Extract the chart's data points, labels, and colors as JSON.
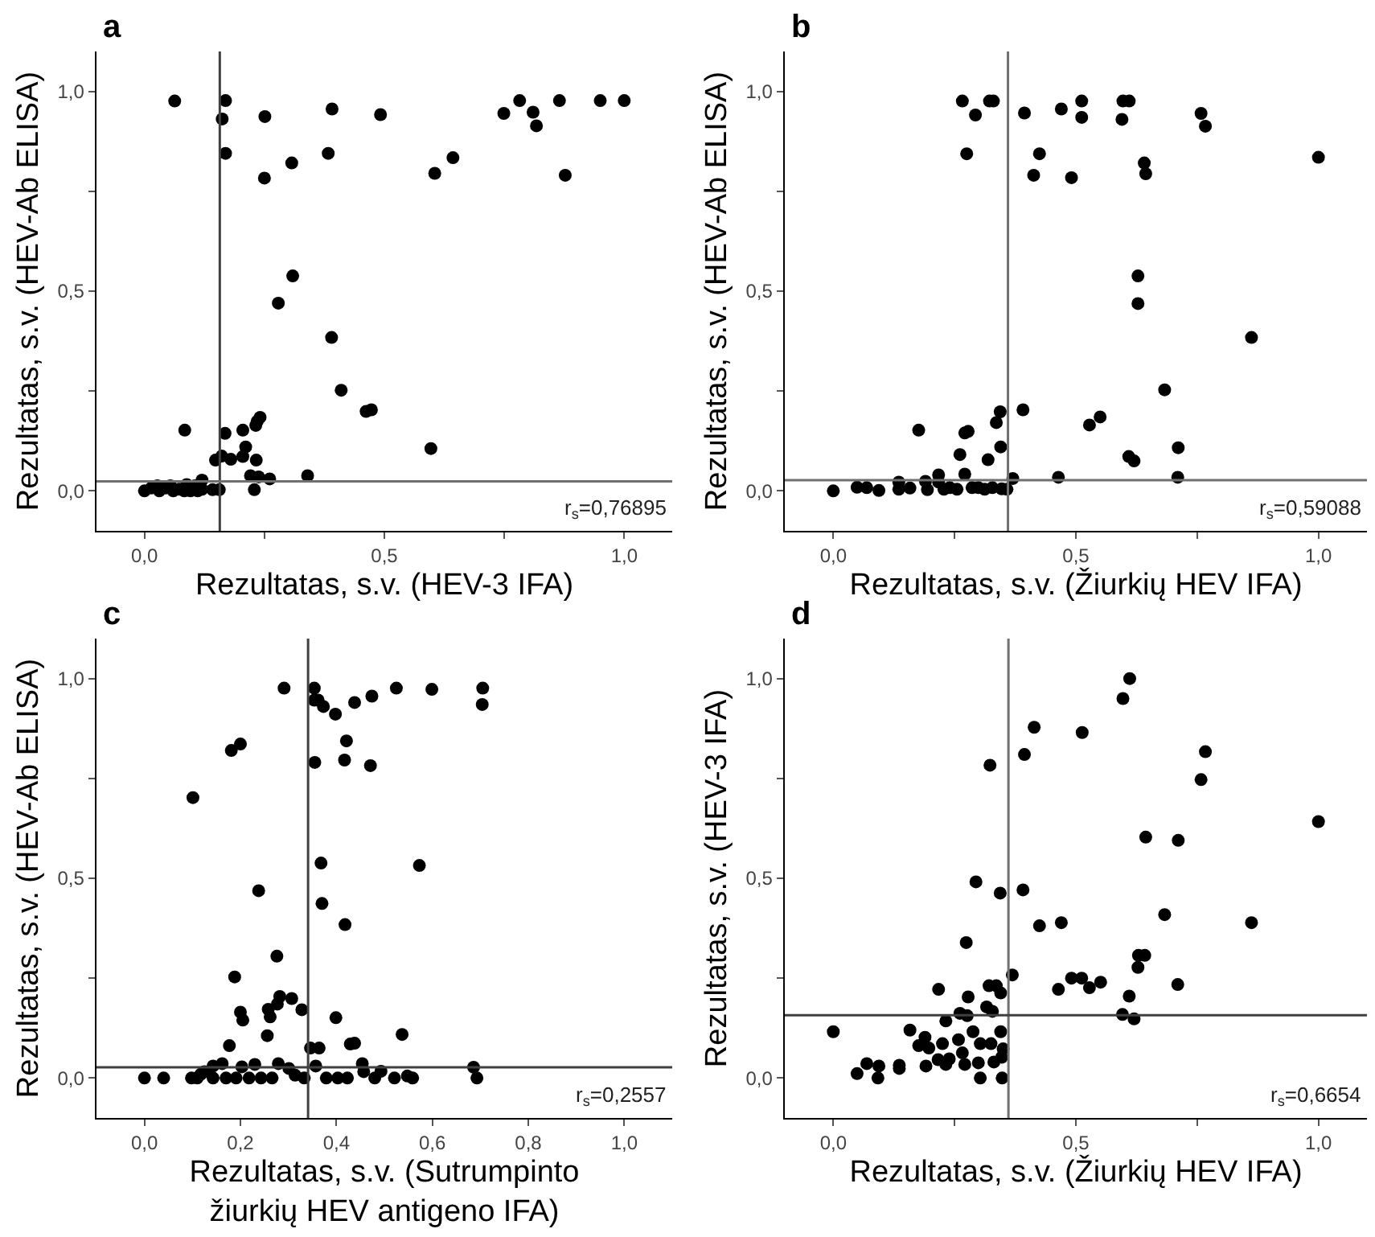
{
  "chart_data": [
    {
      "type": "scatter",
      "title": "a",
      "xlabel": "Rezultatas, s.v. (HEV-3 IFA)",
      "ylabel": "Rezultatas, s.v. (HEV-Ab ELISA)",
      "marker": "circle",
      "xlim": [
        -0.1,
        1.1
      ],
      "ylim": [
        -0.1,
        1.1
      ],
      "xticks": [
        {
          "value": 0,
          "label": "0,0"
        },
        {
          "value": 0.25,
          "label": null
        },
        {
          "value": 0.5,
          "label": "0,5"
        },
        {
          "value": 0.75,
          "label": null
        },
        {
          "value": 1,
          "label": "1,0"
        }
      ],
      "yticks": [
        {
          "value": 0,
          "label": "0,0"
        },
        {
          "value": 0.25,
          "label": null
        },
        {
          "value": 0.5,
          "label": "0,5"
        },
        {
          "value": 0.75,
          "label": null
        },
        {
          "value": 1,
          "label": "1,0"
        }
      ],
      "ref_lines": [
        {
          "axis": "x",
          "value": 0.157,
          "color": "#404040"
        },
        {
          "axis": "y",
          "value": 0.024,
          "color": "#707070"
        }
      ],
      "annotations": [
        "r$_{s}$=0,76895"
      ],
      "series": [
        {
          "color": "#000000",
          "x": [
            0.063,
            0.169,
            0.162,
            0.169,
            0.251,
            0.25,
            0.307,
            0.391,
            0.383,
            0.492,
            0.605,
            0.643,
            0.749,
            0.782,
            0.81,
            0.817,
            0.865,
            0.877,
            0.95,
            1.0,
            0.309,
            0.279,
            0.39,
            0.41,
            0.462,
            0.473,
            0.597,
            0.084,
            0.168,
            0.205,
            0.232,
            0.241,
            0.235,
            0.211,
            0.205,
            0.233,
            0.148,
            0.161,
            0.18,
            0.221,
            0.238,
            0.261,
            0.34,
            0.229,
            0,
            0.014,
            0.027,
            0.031,
            0.044,
            0.054,
            0.06,
            0.072,
            0.083,
            0.088,
            0.096,
            0.105,
            0.111,
            0.12,
            0.12,
            0.142,
            0.156
          ],
          "values": [
            0.976,
            0.977,
            0.931,
            0.845,
            0.937,
            0.783,
            0.821,
            0.956,
            0.845,
            0.942,
            0.795,
            0.834,
            0.945,
            0.977,
            0.948,
            0.914,
            0.977,
            0.79,
            0.977,
            0.977,
            0.538,
            0.47,
            0.384,
            0.252,
            0.199,
            0.203,
            0.106,
            0.152,
            0.144,
            0.152,
            0.164,
            0.184,
            0.174,
            0.11,
            0.086,
            0.077,
            0.077,
            0.087,
            0.079,
            0.038,
            0.035,
            0.03,
            0.038,
            0.003,
            0,
            0.007,
            0.013,
            0,
            0.007,
            0.013,
            0,
            0.004,
            0,
            0.016,
            0,
            0.013,
            0,
            0.027,
            0.004,
            0.003,
            0.003
          ]
        }
      ]
    },
    {
      "type": "scatter",
      "title": "b",
      "xlabel": "Rezultatas, s.v. (Žiurkių HEV IFA)",
      "ylabel": "Rezultatas, s.v. (HEV-Ab ELISA)",
      "marker": "circle",
      "xlim": [
        -0.1,
        1.1
      ],
      "ylim": [
        -0.1,
        1.1
      ],
      "xticks": [
        {
          "value": 0,
          "label": "0,0"
        },
        {
          "value": 0.25,
          "label": null
        },
        {
          "value": 0.5,
          "label": "0,5"
        },
        {
          "value": 0.75,
          "label": null
        },
        {
          "value": 1,
          "label": "1,0"
        }
      ],
      "yticks": [
        {
          "value": 0,
          "label": "0,0"
        },
        {
          "value": 0.25,
          "label": null
        },
        {
          "value": 0.5,
          "label": "0,5"
        },
        {
          "value": 0.75,
          "label": null
        },
        {
          "value": 1,
          "label": "1,0"
        }
      ],
      "ref_lines": [
        {
          "axis": "x",
          "value": 0.36,
          "color": "#707070"
        },
        {
          "axis": "y",
          "value": 0.027,
          "color": "#707070"
        }
      ],
      "annotations": [
        "r$_{s}$=0,59088"
      ],
      "series": [
        {
          "color": "#000000",
          "x": [
            0,
            0.049,
            0.069,
            0.094,
            0.135,
            0.135,
            0.158,
            0.176,
            0.19,
            0.194,
            0.217,
            0.217,
            0.228,
            0.24,
            0.255,
            0.261,
            0.266,
            0.271,
            0.271,
            0.278,
            0.275,
            0.293,
            0.286,
            0.299,
            0.312,
            0.319,
            0.322,
            0.33,
            0.336,
            0.344,
            0.345,
            0.328,
            0.347,
            0.358,
            0.37,
            0.391,
            0.394,
            0.413,
            0.425,
            0.464,
            0.47,
            0.491,
            0.512,
            0.512,
            0.528,
            0.55,
            0.595,
            0.597,
            0.61,
            0.609,
            0.62,
            0.628,
            0.628,
            0.641,
            0.644,
            0.683,
            0.711,
            0.71,
            0.758,
            0.767,
            0.862,
            1.0
          ],
          "values": [
            0,
            0.009,
            0.008,
            0.001,
            0.022,
            0.004,
            0.007,
            0.152,
            0.024,
            0.003,
            0.04,
            0.022,
            0.004,
            0.008,
            0.004,
            0.091,
            0.976,
            0.042,
            0.145,
            0.149,
            0.844,
            0.941,
            0.008,
            0.008,
            0.004,
            0.078,
            0.976,
            0.976,
            0.171,
            0.198,
            0.11,
            0.008,
            0.005,
            0.004,
            0.031,
            0.203,
            0.946,
            0.79,
            0.844,
            0.034,
            0.956,
            0.784,
            0.976,
            0.935,
            0.165,
            0.185,
            0.93,
            0.976,
            0.976,
            0.086,
            0.075,
            0.538,
            0.469,
            0.821,
            0.794,
            0.253,
            0.108,
            0.034,
            0.945,
            0.913,
            0.384,
            0.835
          ]
        }
      ]
    },
    {
      "type": "scatter",
      "title": "c",
      "xlabel": "Rezultatas, s.v. (Sutrumpinto\nžiurkių HEV antigeno IFA)",
      "ylabel": "Rezultatas, s.v. (HEV-Ab ELISA)",
      "marker": "circle",
      "xlim": [
        -0.1,
        1.1
      ],
      "ylim": [
        -0.1,
        1.1
      ],
      "xticks": [
        {
          "value": 0,
          "label": "0,0"
        },
        {
          "value": 0.2,
          "label": "0,2"
        },
        {
          "value": 0.4,
          "label": "0,4"
        },
        {
          "value": 0.6,
          "label": "0,6"
        },
        {
          "value": 0.8,
          "label": "0,8"
        },
        {
          "value": 1,
          "label": "1,0"
        }
      ],
      "yticks": [
        {
          "value": 0,
          "label": "0,0"
        },
        {
          "value": 0.25,
          "label": null
        },
        {
          "value": 0.5,
          "label": "0,5"
        },
        {
          "value": 0.75,
          "label": null
        },
        {
          "value": 1,
          "label": "1,0"
        }
      ],
      "ref_lines": [
        {
          "axis": "x",
          "value": 0.341,
          "color": "#404040"
        },
        {
          "axis": "y",
          "value": 0.027,
          "color": "#404040"
        }
      ],
      "annotations": [
        "r$_{s}$=0,2557"
      ],
      "series": [
        {
          "color": "#000000",
          "x": [
            0,
            0.04,
            0.098,
            0.101,
            0.11,
            0.117,
            0.125,
            0.143,
            0.143,
            0.162,
            0.17,
            0.177,
            0.181,
            0.188,
            0.191,
            0.2,
            0.2,
            0.205,
            0.203,
            0.218,
            0.23,
            0.238,
            0.243,
            0.256,
            0.258,
            0.262,
            0.266,
            0.276,
            0.277,
            0.279,
            0.282,
            0.291,
            0.301,
            0.307,
            0.314,
            0.328,
            0.333,
            0.346,
            0.354,
            0.354,
            0.355,
            0.357,
            0.362,
            0.364,
            0.368,
            0.37,
            0.373,
            0.379,
            0.398,
            0.399,
            0.403,
            0.417,
            0.418,
            0.421,
            0.423,
            0.429,
            0.438,
            0.438,
            0.454,
            0.457,
            0.471,
            0.474,
            0.48,
            0.493,
            0.521,
            0.525,
            0.537,
            0.548,
            0.559,
            0.573,
            0.599,
            0.686,
            0.693,
            0.705,
            0.704
          ],
          "values": [
            0,
            0,
            0,
            0.702,
            0,
            0.009,
            0.016,
            0.03,
            0,
            0.036,
            0,
            0.081,
            0.82,
            0.253,
            0,
            0.836,
            0.165,
            0.145,
            0.028,
            0,
            0.034,
            0.469,
            0,
            0.106,
            0.172,
            0.153,
            0,
            0.305,
            0.185,
            0.036,
            0.204,
            0.976,
            0.024,
            0.199,
            0.007,
            0.171,
            0,
            0.075,
            0.976,
            0.946,
            0.79,
            0.03,
            0.946,
            0.075,
            0.538,
            0.437,
            0.93,
            0,
            0.911,
            0.151,
            0,
            0.796,
            0.384,
            0.844,
            0,
            0.085,
            0.087,
            0.94,
            0.036,
            0.016,
            0.782,
            0.956,
            0,
            0.017,
            0,
            0.976,
            0.109,
            0.005,
            0,
            0.532,
            0.973,
            0.027,
            0,
            0.976,
            0.935
          ]
        }
      ]
    },
    {
      "type": "scatter",
      "title": "d",
      "xlabel": "Rezultatas, s.v. (Žiurkių HEV IFA)",
      "ylabel": "Rezultatas, s.v. (HEV-3 IFA)",
      "marker": "circle",
      "xlim": [
        -0.1,
        1.1
      ],
      "ylim": [
        -0.1,
        1.1
      ],
      "xticks": [
        {
          "value": 0,
          "label": "0,0"
        },
        {
          "value": 0.25,
          "label": null
        },
        {
          "value": 0.5,
          "label": "0,5"
        },
        {
          "value": 0.75,
          "label": null
        },
        {
          "value": 1,
          "label": "1,0"
        }
      ],
      "yticks": [
        {
          "value": 0,
          "label": "0,0"
        },
        {
          "value": 0.25,
          "label": null
        },
        {
          "value": 0.5,
          "label": "0,5"
        },
        {
          "value": 0.75,
          "label": null
        },
        {
          "value": 1,
          "label": "1,0"
        }
      ],
      "ref_lines": [
        {
          "axis": "x",
          "value": 0.361,
          "color": "#707070"
        },
        {
          "axis": "y",
          "value": 0.157,
          "color": "#404040"
        }
      ],
      "annotations": [
        "r$_{s}$=0,6654"
      ],
      "series": [
        {
          "color": "#000000",
          "x": [
            0,
            0.049,
            0.069,
            0.092,
            0.094,
            0.136,
            0.136,
            0.158,
            0.176,
            0.189,
            0.191,
            0.197,
            0.216,
            0.217,
            0.225,
            0.232,
            0.232,
            0.239,
            0.258,
            0.261,
            0.266,
            0.271,
            0.274,
            0.278,
            0.276,
            0.288,
            0.294,
            0.299,
            0.303,
            0.303,
            0.316,
            0.321,
            0.323,
            0.325,
            0.328,
            0.331,
            0.336,
            0.344,
            0.345,
            0.345,
            0.348,
            0.347,
            0.35,
            0.369,
            0.391,
            0.394,
            0.414,
            0.425,
            0.464,
            0.47,
            0.491,
            0.512,
            0.513,
            0.528,
            0.551,
            0.596,
            0.597,
            0.61,
            0.611,
            0.62,
            0.628,
            0.629,
            0.642,
            0.644,
            0.683,
            0.711,
            0.71,
            0.758,
            0.767,
            0.862,
            1.0
          ],
          "values": [
            0.116,
            0.011,
            0.036,
            0,
            0.03,
            0.032,
            0.024,
            0.12,
            0.081,
            0.102,
            0.03,
            0.075,
            0.046,
            0.222,
            0.086,
            0.034,
            0.143,
            0.048,
            0.096,
            0.162,
            0.063,
            0.034,
            0.339,
            0.203,
            0.156,
            0.116,
            0.491,
            0.038,
            0,
            0.086,
            0.178,
            0.231,
            0.783,
            0.086,
            0.167,
            0.04,
            0.231,
            0.463,
            0.213,
            0.116,
            0,
            0.052,
            0.073,
            0.258,
            0.471,
            0.81,
            0.878,
            0.381,
            0.222,
            0.389,
            0.25,
            0.25,
            0.865,
            0.226,
            0.24,
            0.159,
            0.95,
            0.205,
            1.0,
            0.148,
            0.277,
            0.307,
            0.307,
            0.603,
            0.409,
            0.595,
            0.234,
            0.747,
            0.817,
            0.389,
            0.642
          ]
        }
      ]
    }
  ]
}
